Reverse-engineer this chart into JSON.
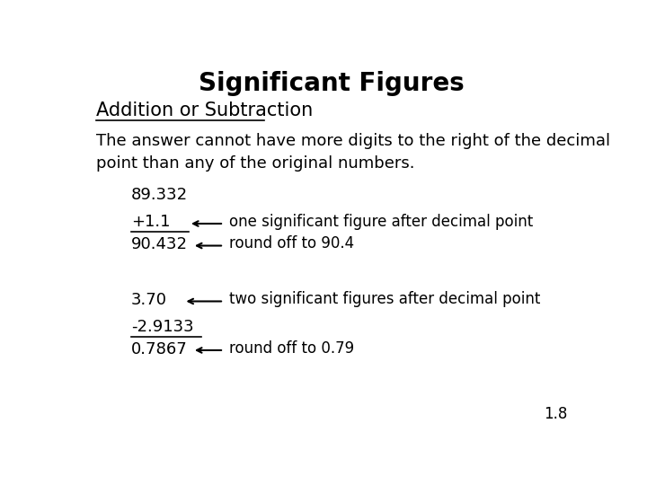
{
  "title": "Significant Figures",
  "subtitle": "Addition or Subtraction",
  "description": "The answer cannot have more digits to the right of the decimal\npoint than any of the original numbers.",
  "example1": {
    "line1": "89.332",
    "line2": "+1.1",
    "line3": "90.432",
    "arrow1_label": "one significant figure after decimal point",
    "arrow2_label": "round off to 90.4"
  },
  "example2": {
    "line1": "3.70",
    "line2": "-2.9133",
    "line3": "0.7867",
    "arrow1_label": "two significant figures after decimal point",
    "arrow2_label": "round off to 0.79"
  },
  "footnote": "1.8",
  "bg_color": "#ffffff",
  "text_color": "#000000",
  "font_family": "DejaVu Sans",
  "title_fontsize": 20,
  "subtitle_fontsize": 15,
  "body_fontsize": 13,
  "label_fontsize": 12
}
